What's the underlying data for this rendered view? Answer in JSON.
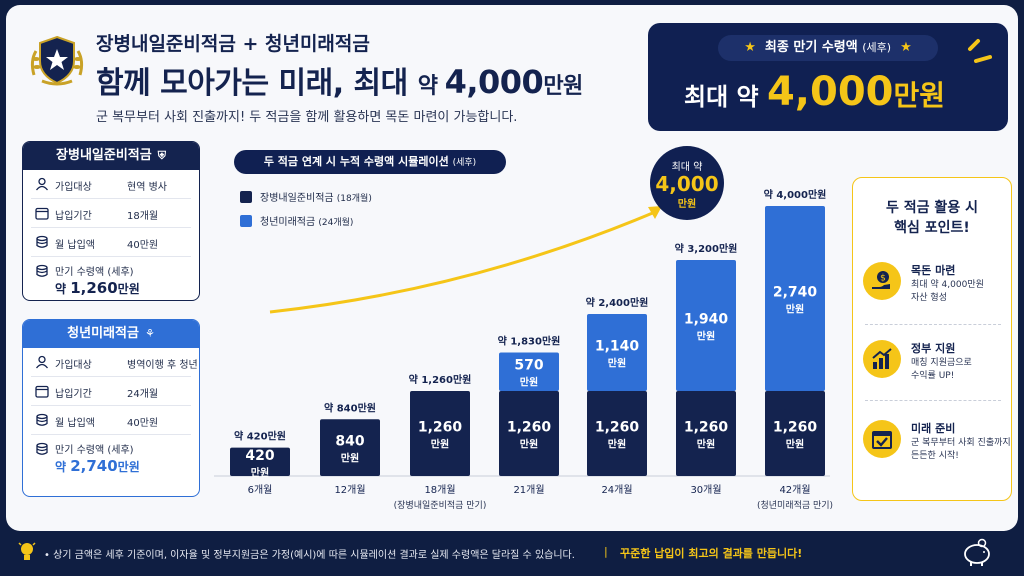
{
  "header": {
    "title_line1": "장병내일준비적금 + 청년미래적금",
    "title_line2_pre": "함께 모아가는 미래, 최대 ",
    "title_line2_mid": "약 ",
    "title_line2_num": "4,000",
    "title_line2_unit": "만원",
    "subtitle": "군 복무부터 사회 진출까지! 두 적금을 함께 활용하면 목돈 마련이 가능합니다."
  },
  "final_box": {
    "tag": "최종 만기 수령액",
    "tag_paren": "(세후)",
    "amount_pre": "최대 약 ",
    "amount_num": "4,000",
    "amount_unit": "만원"
  },
  "card1": {
    "title": "장병내일준비적금",
    "rows": [
      {
        "label": "가입대상",
        "value": "현역 병사"
      },
      {
        "label": "납입기간",
        "value": "18개월"
      },
      {
        "label": "월 납입액",
        "value": "40만원"
      }
    ],
    "maturity_label": "만기 수령액 (세후)",
    "maturity_pre": "약 ",
    "maturity_num": "1,260",
    "maturity_unit": "만원"
  },
  "card2": {
    "title": "청년미래적금",
    "rows": [
      {
        "label": "가입대상",
        "value": "병역이행 후 청년"
      },
      {
        "label": "납입기간",
        "value": "24개월"
      },
      {
        "label": "월 납입액",
        "value": "40만원"
      }
    ],
    "maturity_label": "만기 수령액 (세후)",
    "maturity_pre": "약 ",
    "maturity_num": "2,740",
    "maturity_unit": "만원"
  },
  "chart_tag": {
    "text": "두 적금 연계 시 누적 수령액 시뮬레이션",
    "paren": "(세후)"
  },
  "legend": [
    {
      "name": "장병내일준비적금",
      "paren": "(18개월)"
    },
    {
      "name": "청년미래적금",
      "paren": "(24개월)"
    }
  ],
  "bubble": {
    "line1": "최대 약",
    "line2": "4,000",
    "line3": "만원"
  },
  "chart_data": {
    "type": "bar",
    "stacked": true,
    "categories": [
      "6개월",
      "12개월",
      "18개월",
      "21개월",
      "24개월",
      "30개월",
      "42개월"
    ],
    "sublabels": [
      "",
      "",
      "(장병내일준비적금 만기)",
      "",
      "",
      "",
      "(청년미래적금 만기)"
    ],
    "series": [
      {
        "name": "장병내일준비적금 (18개월)",
        "color": "#14234f",
        "values": [
          420,
          840,
          1260,
          1260,
          1260,
          1260,
          1260
        ]
      },
      {
        "name": "청년미래적금 (24개월)",
        "color": "#2f6fd6",
        "values": [
          0,
          0,
          0,
          570,
          1140,
          1940,
          2740
        ]
      }
    ],
    "totals_labels": [
      "약 420만원",
      "약 840만원",
      "약 1,260만원",
      "약 1,830만원",
      "약 2,400만원",
      "약 3,200만원",
      "약 4,000만원"
    ],
    "segment_unit": "만원",
    "segment_value_labels": [
      [
        "420",
        "840",
        "1,260",
        "1,260",
        "1,260",
        "1,260",
        "1,260"
      ],
      [
        "",
        "",
        "",
        "570",
        "1,140",
        "1,940",
        "2,740"
      ]
    ],
    "ylim": [
      0,
      4000
    ],
    "grid": false,
    "legend_position": "top-left"
  },
  "tips": {
    "title_line1": "두 적금 활용 시",
    "title_line2": "핵심 포인트!",
    "items": [
      {
        "title": "목돈 마련",
        "desc1": "최대 약 4,000만원",
        "desc2": "자산 형성",
        "icon": "money-hand-icon"
      },
      {
        "title": "정부 지원",
        "desc1": "매칭 지원금으로",
        "desc2": "수익률 UP!",
        "icon": "chart-up-icon"
      },
      {
        "title": "미래 준비",
        "desc1": "군 복무부터 사회 진출까지",
        "desc2": "든든한 시작!",
        "icon": "calendar-check-icon"
      }
    ]
  },
  "footer": {
    "note": "• 상기 금액은 세후 기준이며, 이자율 및 정부지원금은 가정(예시)에 따른 시뮬레이션 결과로 실제 수령액은 달라질 수 있습니다.",
    "divider": "|",
    "slogan": "꾸준한 납입이 최고의 결과를 만듭니다!"
  },
  "colors": {
    "navy": "#14234f",
    "blue": "#2f6fd6",
    "gold": "#f5c518"
  }
}
